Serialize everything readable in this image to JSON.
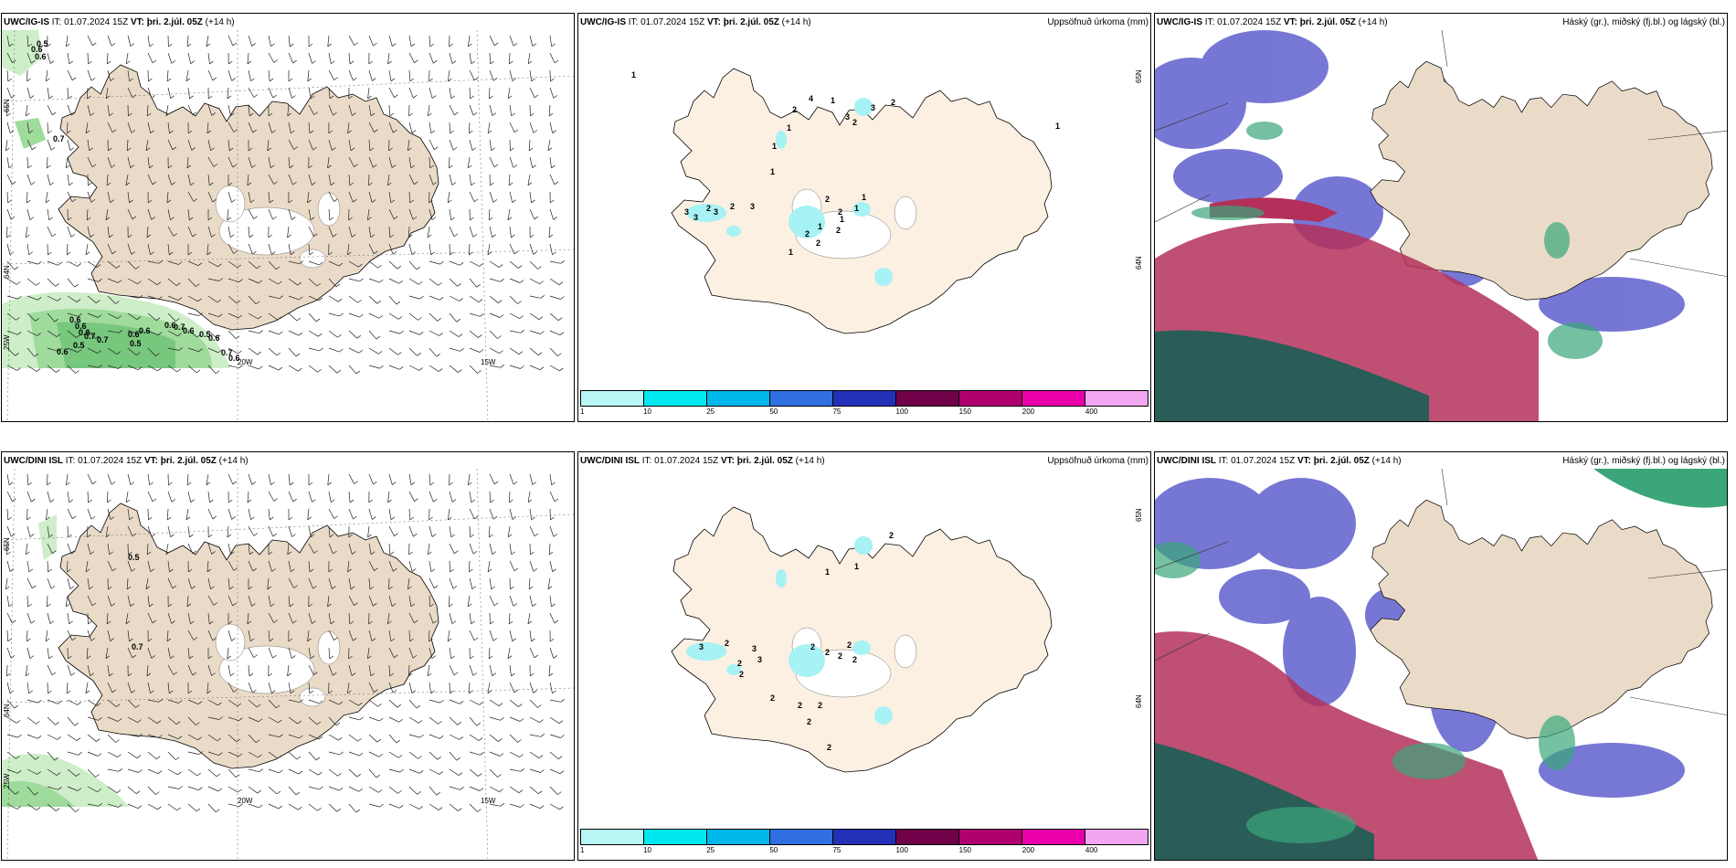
{
  "rows": [
    {
      "panels": [
        {
          "model": "UWC/IG-IS",
          "it_label": "IT:",
          "it_value": "01.07.2024 15Z",
          "vt_label": "VT:",
          "vt_value": "þri. 2.júl. 05Z",
          "lead": "(+14 h)",
          "title_right": "",
          "values": [
            "0.5",
            "0.6",
            "0.6",
            "0.7",
            "0.6",
            "0.6",
            "0.6",
            "0.7",
            "0.7",
            "0.5",
            "0.6",
            "0.6",
            "0.6",
            "0.6",
            "0.7",
            "0.6",
            "0.5",
            "0.6",
            "0.7",
            "0.6",
            "0.5"
          ],
          "grid_labels": [
            "65N",
            "64N",
            "25W",
            "20W",
            "15W"
          ]
        },
        {
          "model": "UWC/IG-IS",
          "it_label": "IT:",
          "it_value": "01.07.2024 15Z",
          "vt_label": "VT:",
          "vt_value": "þri. 2.júl. 05Z",
          "lead": "(+14 h)",
          "title_right": "Uppsöfnuð úrkoma (mm)",
          "values": [
            "1",
            "2",
            "1",
            "1",
            "1",
            "4",
            "1",
            "3",
            "3",
            "2",
            "2",
            "1",
            "1",
            "1",
            "2",
            "3",
            "2",
            "3",
            "3",
            "3",
            "2",
            "1",
            "2",
            "1",
            "2",
            "2",
            "2",
            "1"
          ],
          "grid_labels": [
            "65N",
            "64N"
          ]
        },
        {
          "model": "UWC/IG-IS",
          "it_label": "IT:",
          "it_value": "01.07.2024 15Z",
          "vt_label": "VT:",
          "vt_value": "þri. 2.júl. 05Z",
          "lead": "(+14 h)",
          "title_right": "Háský (gr.), miðský (fj.bl.) og lágský (bl.)",
          "values": [],
          "grid_labels": []
        }
      ]
    },
    {
      "panels": [
        {
          "model": "UWC/DINI ISL",
          "it_label": "IT:",
          "it_value": "01.07.2024 15Z",
          "vt_label": "VT:",
          "vt_value": "þri. 2.júl. 05Z",
          "lead": "(+14 h)",
          "title_right": "",
          "values": [
            "0.5",
            "0.7"
          ],
          "grid_labels": [
            "65N",
            "64N",
            "25W",
            "20W",
            "15W"
          ]
        },
        {
          "model": "UWC/DINI ISL",
          "it_label": "IT:",
          "it_value": "01.07.2024 15Z",
          "vt_label": "VT:",
          "vt_value": "þri. 2.júl. 05Z",
          "lead": "(+14 h)",
          "title_right": "Uppsöfnuð úrkoma (mm)",
          "values": [
            "1",
            "2",
            "2",
            "1",
            "1",
            "3",
            "3",
            "2",
            "3",
            "2",
            "2",
            "2",
            "2",
            "2",
            "2",
            "2",
            "2",
            "2",
            "2",
            "2",
            "2"
          ],
          "grid_labels": [
            "65N",
            "64N"
          ]
        },
        {
          "model": "UWC/DINI ISL",
          "it_label": "IT:",
          "it_value": "01.07.2024 15Z",
          "vt_label": "VT:",
          "vt_value": "þri. 2.júl. 05Z",
          "lead": "(+14 h)",
          "title_right": "Háský (gr.), miðský (fj.bl.) og lágský (bl.)",
          "values": [],
          "grid_labels": []
        }
      ]
    }
  ],
  "colorbar": {
    "ticks": [
      "1",
      "10",
      "25",
      "50",
      "75",
      "100",
      "150",
      "200",
      "400"
    ],
    "colors": [
      "#b8f6f6",
      "#00e8ef",
      "#00b7ea",
      "#2f6fe0",
      "#2330b8",
      "#700047",
      "#b0006e",
      "#ea00aa",
      "#f2a6ef"
    ]
  },
  "colors": {
    "land": "#eadbc8",
    "land_precip": "#fcf0e2",
    "ice": "#ffffff",
    "precip_light": "#a6f2f5",
    "wind_green_light": "#cdeec8",
    "wind_green_mid": "#9fdb9b",
    "wind_green_dark": "#66bf70",
    "cloud_high": "#6868d0",
    "cloud_mid": "#3aa67a",
    "cloud_low": "#b4305a",
    "cloud_low_dark": "#2a5c58"
  }
}
